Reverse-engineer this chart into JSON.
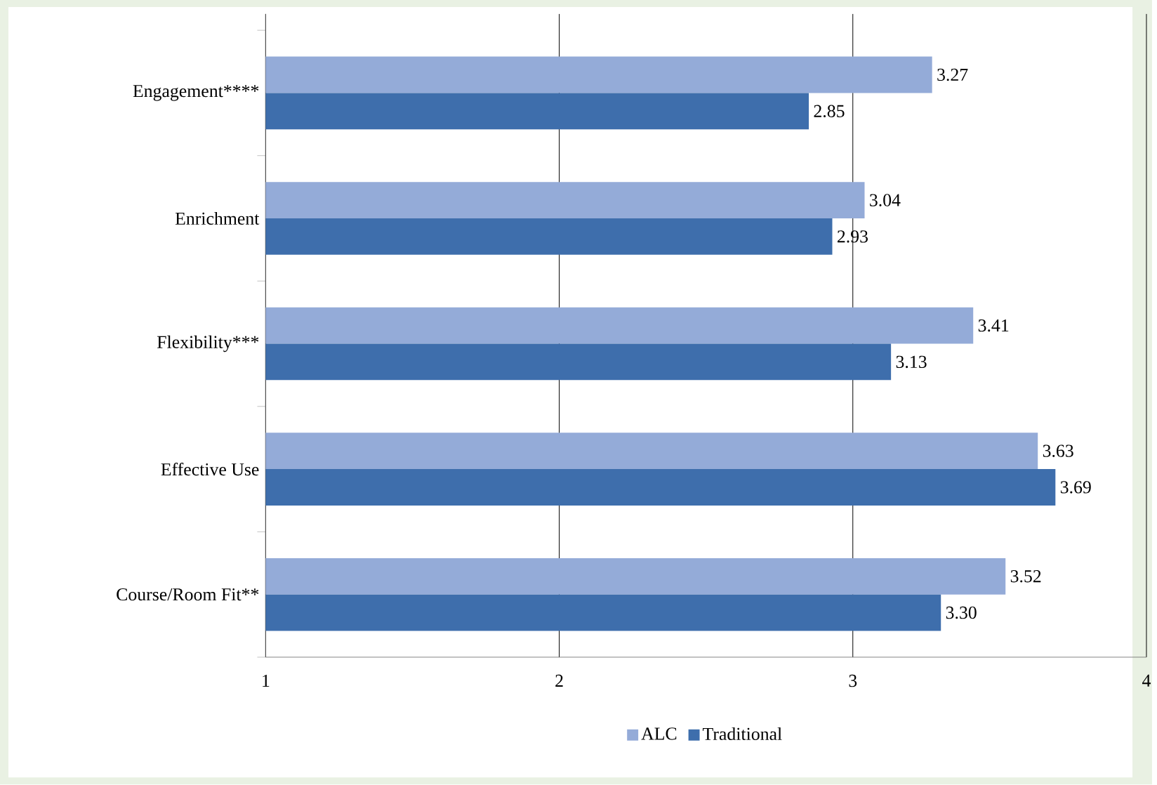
{
  "chart_data": {
    "type": "bar",
    "orientation": "horizontal",
    "categories": [
      "Engagement****",
      "Enrichment",
      "Flexibility***",
      "Effective Use",
      "Course/Room Fit**"
    ],
    "series": [
      {
        "name": "ALC",
        "color": "#94abd8",
        "values": [
          3.27,
          3.04,
          3.41,
          3.63,
          3.52
        ],
        "value_labels": [
          "3.27",
          "3.04",
          "3.41",
          "3.63",
          "3.52"
        ]
      },
      {
        "name": "Traditional",
        "color": "#3e6eac",
        "values": [
          2.85,
          2.93,
          3.13,
          3.69,
          3.3
        ],
        "value_labels": [
          "2.85",
          "2.93",
          "3.13",
          "3.69",
          "3.30"
        ]
      }
    ],
    "xlim": [
      1,
      4
    ],
    "xticks": [
      1,
      2,
      3,
      4
    ],
    "grid": "x",
    "legend": "bottom"
  }
}
